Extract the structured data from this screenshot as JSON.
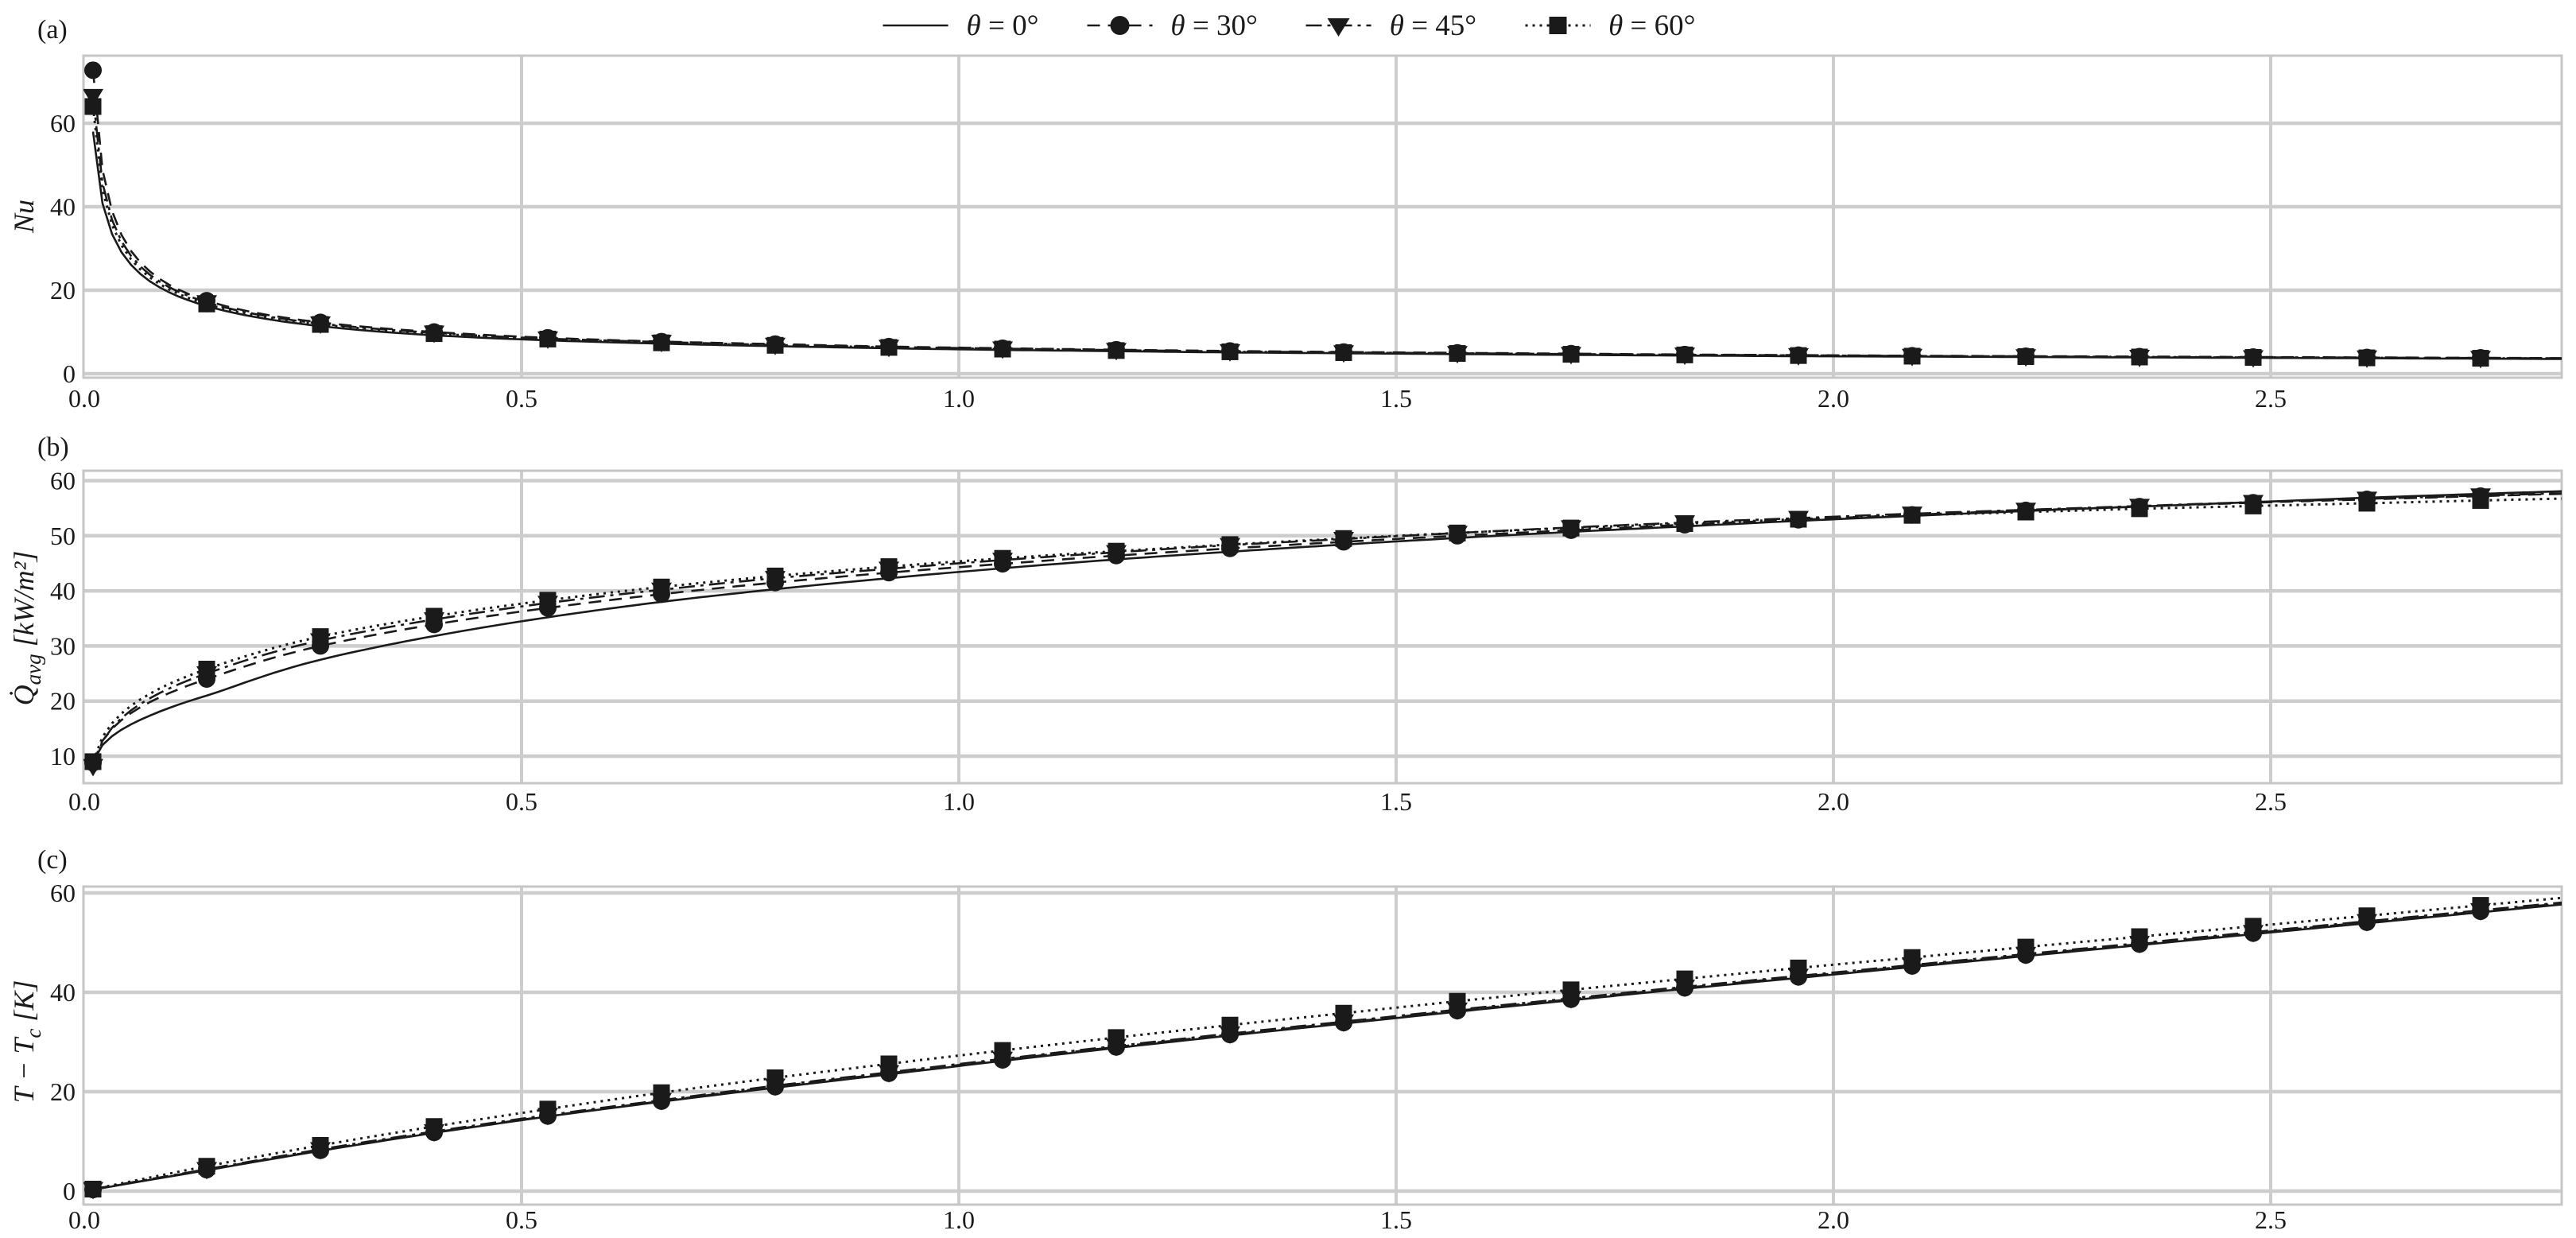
{
  "legend": {
    "items": [
      {
        "symbol": "θ",
        "rest": " = 0°",
        "line": "solid",
        "marker": "none"
      },
      {
        "symbol": "θ",
        "rest": " = 30°",
        "line": "dashed",
        "marker": "circle"
      },
      {
        "symbol": "θ",
        "rest": " = 45°",
        "line": "dashdot",
        "marker": "triangle-down"
      },
      {
        "symbol": "θ",
        "rest": " = 60°",
        "line": "dotted",
        "marker": "square"
      }
    ]
  },
  "panels": [
    {
      "letter": "(a)",
      "ylabel": "Nu",
      "ytick_labels": [
        "0",
        "20",
        "40",
        "60"
      ],
      "xtick_labels": [
        "0.0",
        "0.5",
        "1.0",
        "1.5",
        "2.0",
        "2.5"
      ]
    },
    {
      "letter": "(b)",
      "ylabel_parts": {
        "main": "Q̇",
        "sub": "avg",
        "unit": " [kW/m²]"
      },
      "ytick_labels": [
        "10",
        "20",
        "30",
        "40",
        "50",
        "60"
      ],
      "xtick_labels": [
        "0.0",
        "0.5",
        "1.0",
        "1.5",
        "2.0",
        "2.5"
      ]
    },
    {
      "letter": "(c)",
      "ylabel_parts": {
        "main": "T − T",
        "sub": "c",
        "unit": " [K]"
      },
      "ytick_labels": [
        "0",
        "20",
        "40",
        "60"
      ],
      "xtick_labels": [
        "0.0",
        "0.5",
        "1.0",
        "1.5",
        "2.0",
        "2.5"
      ]
    }
  ],
  "colors": {
    "line": "#1a1a1a",
    "grid": "#cdcdcd",
    "spine": "#c6c6c6",
    "background": "#ffffff"
  },
  "chart_data": [
    {
      "type": "line",
      "panel": "a",
      "title": "",
      "xlabel": "",
      "ylabel": "Nu",
      "xlim": [
        0,
        2.83
      ],
      "ylim": [
        -1,
        76
      ],
      "yticks": [
        0,
        20,
        40,
        60
      ],
      "xticks": [
        0,
        0.5,
        1.0,
        1.5,
        2.0,
        2.5
      ],
      "grid": true,
      "legend_position": "top-center-shared",
      "interp": "loglog",
      "x": [
        0.01,
        0.14,
        0.27,
        0.4,
        0.53,
        0.66,
        0.79,
        0.92,
        1.05,
        1.18,
        1.31,
        1.44,
        1.57,
        1.7,
        1.83,
        1.96,
        2.09,
        2.22,
        2.35,
        2.48,
        2.61,
        2.74
      ],
      "series": [
        {
          "name": "θ = 0°",
          "line": "solid",
          "marker": "none",
          "values": [
            58.0,
            16.2,
            11.4,
            9.2,
            8.0,
            7.2,
            6.6,
            6.1,
            5.7,
            5.4,
            5.1,
            4.9,
            4.7,
            4.5,
            4.35,
            4.2,
            4.1,
            4.0,
            3.9,
            3.8,
            3.7,
            3.6
          ]
        },
        {
          "name": "θ = 30°",
          "line": "dashed",
          "marker": "circle",
          "values": [
            72.7,
            17.5,
            12.3,
            10.0,
            8.6,
            7.7,
            7.1,
            6.5,
            6.1,
            5.75,
            5.45,
            5.2,
            5.0,
            4.8,
            4.6,
            4.45,
            4.3,
            4.2,
            4.1,
            4.0,
            3.9,
            3.8
          ]
        },
        {
          "name": "θ = 45°",
          "line": "dashdot",
          "marker": "triangle-down",
          "values": [
            66.5,
            17.1,
            12.0,
            9.8,
            8.4,
            7.6,
            6.9,
            6.4,
            6.0,
            5.65,
            5.35,
            5.1,
            4.9,
            4.7,
            4.55,
            4.4,
            4.25,
            4.15,
            4.0,
            3.9,
            3.85,
            3.75
          ]
        },
        {
          "name": "θ = 60°",
          "line": "dotted",
          "marker": "square",
          "values": [
            64.0,
            16.7,
            11.8,
            9.6,
            8.3,
            7.4,
            6.8,
            6.3,
            5.9,
            5.55,
            5.25,
            5.05,
            4.85,
            4.65,
            4.5,
            4.35,
            4.2,
            4.1,
            4.0,
            3.9,
            3.8,
            3.7
          ]
        }
      ]
    },
    {
      "type": "line",
      "panel": "b",
      "title": "",
      "xlabel": "",
      "ylabel": "Q_avg [kW/m^2]",
      "xlim": [
        0,
        2.83
      ],
      "ylim": [
        5,
        62
      ],
      "yticks": [
        10,
        20,
        30,
        40,
        50,
        60
      ],
      "xticks": [
        0,
        0.5,
        1.0,
        1.5,
        2.0,
        2.5
      ],
      "grid": true,
      "legend_position": "top-center-shared",
      "interp": "semilogx",
      "x": [
        0.01,
        0.14,
        0.27,
        0.4,
        0.53,
        0.66,
        0.79,
        0.92,
        1.05,
        1.18,
        1.31,
        1.44,
        1.57,
        1.7,
        1.83,
        1.96,
        2.09,
        2.22,
        2.35,
        2.48,
        2.61,
        2.74
      ],
      "series": [
        {
          "name": "θ = 0°",
          "line": "solid",
          "marker": "none",
          "values": [
            9.0,
            21.0,
            27.5,
            31.8,
            35.2,
            38.0,
            40.3,
            42.3,
            44.1,
            45.7,
            47.1,
            48.4,
            49.6,
            50.7,
            51.7,
            52.7,
            53.6,
            54.5,
            55.3,
            56.1,
            56.9,
            57.6
          ]
        },
        {
          "name": "θ = 30°",
          "line": "dashed",
          "marker": "circle",
          "values": [
            8.8,
            24.0,
            30.0,
            33.9,
            36.9,
            39.4,
            41.5,
            43.3,
            44.9,
            46.4,
            47.7,
            48.9,
            50.0,
            51.0,
            52.0,
            52.9,
            53.8,
            54.6,
            55.3,
            56.0,
            56.6,
            57.2
          ]
        },
        {
          "name": "θ = 45°",
          "line": "dashdot",
          "marker": "triangle-down",
          "values": [
            8.2,
            25.0,
            31.0,
            34.8,
            37.8,
            40.2,
            42.3,
            44.0,
            45.6,
            47.0,
            48.3,
            49.4,
            50.5,
            51.5,
            52.4,
            53.2,
            54.0,
            54.7,
            55.4,
            56.1,
            56.7,
            57.3
          ]
        },
        {
          "name": "θ = 60°",
          "line": "dotted",
          "marker": "square",
          "values": [
            9.0,
            25.8,
            31.7,
            35.4,
            38.3,
            40.7,
            42.7,
            44.4,
            45.9,
            47.2,
            48.4,
            49.5,
            50.5,
            51.4,
            52.2,
            53.0,
            53.7,
            54.3,
            54.9,
            55.4,
            55.9,
            56.4
          ]
        }
      ]
    },
    {
      "type": "line",
      "panel": "c",
      "title": "",
      "xlabel": "",
      "ylabel": "T − T_c [K]",
      "xlim": [
        0,
        2.83
      ],
      "ylim": [
        -2,
        61
      ],
      "yticks": [
        0,
        20,
        40,
        60
      ],
      "xticks": [
        0,
        0.5,
        1.0,
        1.5,
        2.0,
        2.5
      ],
      "grid": true,
      "legend_position": "top-center-shared",
      "interp": "linear",
      "x": [
        0.01,
        0.14,
        0.27,
        0.4,
        0.53,
        0.66,
        0.79,
        0.92,
        1.05,
        1.18,
        1.31,
        1.44,
        1.57,
        1.7,
        1.83,
        1.96,
        2.09,
        2.22,
        2.35,
        2.48,
        2.61,
        2.74
      ],
      "series": [
        {
          "name": "θ = 0°",
          "line": "solid",
          "marker": "none",
          "values": [
            0.3,
            4.2,
            8.1,
            11.7,
            15.0,
            18.0,
            20.8,
            23.5,
            26.2,
            28.8,
            31.3,
            33.7,
            36.1,
            38.4,
            40.7,
            42.9,
            45.1,
            47.3,
            49.5,
            51.7,
            53.9,
            56.1
          ]
        },
        {
          "name": "θ = 30°",
          "line": "dashed",
          "marker": "circle",
          "values": [
            0.3,
            4.3,
            8.2,
            11.8,
            15.1,
            18.1,
            21.0,
            23.7,
            26.4,
            29.0,
            31.5,
            33.9,
            36.3,
            38.6,
            40.9,
            43.1,
            45.3,
            47.5,
            49.7,
            51.9,
            54.1,
            56.3
          ]
        },
        {
          "name": "θ = 45°",
          "line": "dashdot",
          "marker": "triangle-down",
          "values": [
            0.4,
            4.4,
            8.4,
            12.0,
            15.3,
            18.3,
            21.2,
            23.9,
            26.6,
            29.2,
            31.7,
            34.1,
            36.5,
            38.8,
            41.1,
            43.3,
            45.5,
            47.7,
            49.9,
            52.1,
            54.3,
            56.5
          ]
        },
        {
          "name": "θ = 60°",
          "line": "dotted",
          "marker": "square",
          "values": [
            0.4,
            5.0,
            9.2,
            13.0,
            16.5,
            19.8,
            22.8,
            25.6,
            28.3,
            30.9,
            33.4,
            35.8,
            38.2,
            40.5,
            42.7,
            44.9,
            47.0,
            49.1,
            51.2,
            53.3,
            55.4,
            57.5
          ]
        }
      ]
    }
  ]
}
